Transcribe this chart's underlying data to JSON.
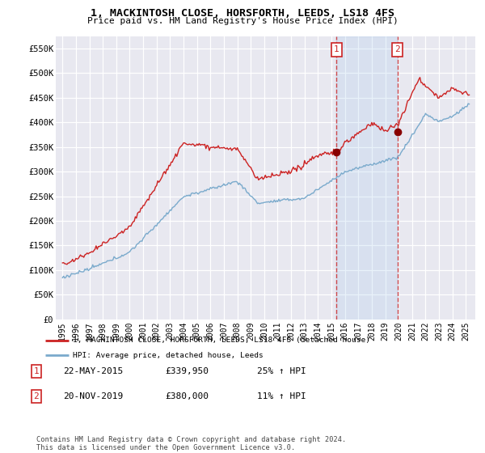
{
  "title": "1, MACKINTOSH CLOSE, HORSFORTH, LEEDS, LS18 4FS",
  "subtitle": "Price paid vs. HM Land Registry's House Price Index (HPI)",
  "ylabel_ticks": [
    "£0",
    "£50K",
    "£100K",
    "£150K",
    "£200K",
    "£250K",
    "£300K",
    "£350K",
    "£400K",
    "£450K",
    "£500K",
    "£550K"
  ],
  "ytick_values": [
    0,
    50000,
    100000,
    150000,
    200000,
    250000,
    300000,
    350000,
    400000,
    450000,
    500000,
    550000
  ],
  "ylim": [
    0,
    575000
  ],
  "xlim_start": 1994.5,
  "xlim_end": 2025.7,
  "red_line_color": "#cc2222",
  "blue_line_color": "#7aaacc",
  "blue_fill_color": "#ddeeff",
  "marker1_x": 2015.38,
  "marker1_y": 339950,
  "marker2_x": 2019.9,
  "marker2_y": 380000,
  "legend_line1": "1, MACKINTOSH CLOSE, HORSFORTH, LEEDS, LS18 4FS (detached house)",
  "legend_line2": "HPI: Average price, detached house, Leeds",
  "annotation1_date": "22-MAY-2015",
  "annotation1_price": "£339,950",
  "annotation1_hpi": "25% ↑ HPI",
  "annotation2_date": "20-NOV-2019",
  "annotation2_price": "£380,000",
  "annotation2_hpi": "11% ↑ HPI",
  "footer": "Contains HM Land Registry data © Crown copyright and database right 2024.\nThis data is licensed under the Open Government Licence v3.0.",
  "background_color": "#ffffff",
  "plot_background": "#e8e8f0"
}
